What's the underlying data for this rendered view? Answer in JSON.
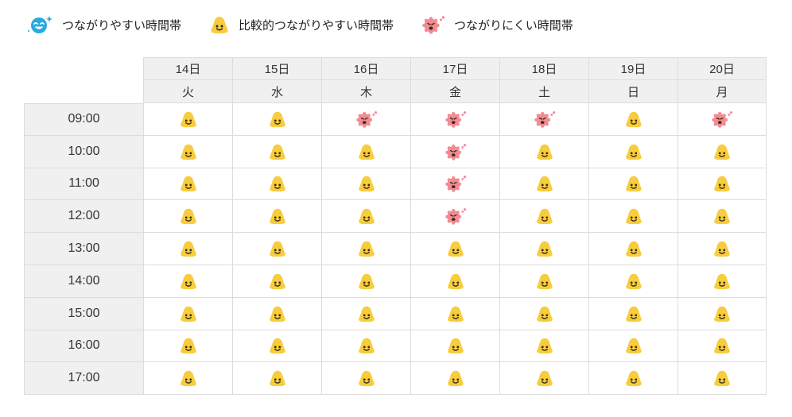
{
  "legend": [
    {
      "label": "つながりやすい時間帯",
      "icon": "happy-blue-face-icon",
      "color": "#29a9e1"
    },
    {
      "label": "比較的つながりやすい時間帯",
      "icon": "smile-yellow-face-icon",
      "color": "#f7cd3d"
    },
    {
      "label": "つながりにくい時間帯",
      "icon": "sad-pink-face-icon",
      "color": "#f38b93"
    }
  ],
  "dates": [
    "14日",
    "15日",
    "16日",
    "17日",
    "18日",
    "19日",
    "20日"
  ],
  "weekdays": [
    "火",
    "水",
    "木",
    "金",
    "土",
    "日",
    "月"
  ],
  "times": [
    "09:00",
    "10:00",
    "11:00",
    "12:00",
    "13:00",
    "14:00",
    "15:00",
    "16:00",
    "17:00"
  ],
  "status_grid": [
    [
      "ok",
      "ok",
      "busy",
      "busy",
      "busy",
      "ok",
      "busy"
    ],
    [
      "ok",
      "ok",
      "ok",
      "busy",
      "ok",
      "ok",
      "ok"
    ],
    [
      "ok",
      "ok",
      "ok",
      "busy",
      "ok",
      "ok",
      "ok"
    ],
    [
      "ok",
      "ok",
      "ok",
      "busy",
      "ok",
      "ok",
      "ok"
    ],
    [
      "ok",
      "ok",
      "ok",
      "ok",
      "ok",
      "ok",
      "ok"
    ],
    [
      "ok",
      "ok",
      "ok",
      "ok",
      "ok",
      "ok",
      "ok"
    ],
    [
      "ok",
      "ok",
      "ok",
      "ok",
      "ok",
      "ok",
      "ok"
    ],
    [
      "ok",
      "ok",
      "ok",
      "ok",
      "ok",
      "ok",
      "ok"
    ],
    [
      "ok",
      "ok",
      "ok",
      "ok",
      "ok",
      "ok",
      "ok"
    ]
  ],
  "status_icons": {
    "ok": "smile-yellow-face-icon",
    "busy": "sad-pink-face-icon"
  }
}
